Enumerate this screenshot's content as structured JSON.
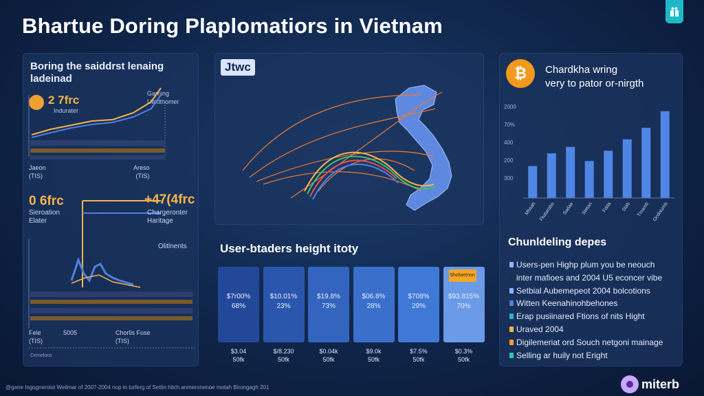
{
  "header": {
    "title": "Bhartue Doring Plaplomatiors in Vietnam"
  },
  "left_panel": {
    "heading": "Boring the saiddrst lenaing ladeinad",
    "stat_value": "2 7frc",
    "stat_sub": "Indurater",
    "legend_line1": "Garning",
    "legend_line2": "Uaidthomer",
    "foot_left_1": "Jaeon",
    "foot_left_2": "(TIS)",
    "foot_right_1": "Areso",
    "foot_right_2": "(TIS)",
    "big_left": "0 6frc",
    "big_right": "+47(4frc",
    "mid_left_1": "Sieroation",
    "mid_left_2": "Elater",
    "mid_right_1": "Chargeronter",
    "mid_right_2": "Haritage",
    "label_third": "Olitlnents",
    "bottom_left_1": "Fele",
    "bottom_left_2": "(TIS)",
    "bottom_mid": "5005",
    "bottom_right_1": "Chorlis Fuse",
    "bottom_right_2": "(TIS)",
    "bottom_foot": "Cemelons",
    "colors": {
      "accent": "#f6b54b",
      "line": "#4f7fe0"
    }
  },
  "map_panel": {
    "tag": "Jtwc",
    "colors": {
      "land": "#5f88e0",
      "arcs": "#f07a2e"
    }
  },
  "cards_section": {
    "title": "User-btaders height itoty",
    "flag_label": "Sholwetnon",
    "cards": [
      {
        "v1": "$7r00%",
        "v2": "68%",
        "foot1": "$3.04",
        "foot2": "50fk",
        "color": "#23489a"
      },
      {
        "v1": "$10.01%",
        "v2": "23%",
        "foot1": "$/8.230",
        "foot2": "50fk",
        "color": "#2b56ad"
      },
      {
        "v1": "$19.8%",
        "v2": "73%",
        "foot1": "$0.04k",
        "foot2": "50fk",
        "color": "#3365bf"
      },
      {
        "v1": "$06.8%",
        "v2": "28%",
        "foot1": "$9.0k",
        "foot2": "50fk",
        "color": "#3a70cc"
      },
      {
        "v1": "$708%",
        "v2": "29%",
        "foot1": "$7.5%",
        "foot2": "50fk",
        "color": "#3f78d6"
      },
      {
        "v1": "$93.815%",
        "v2": "70%",
        "foot1": "$0.3%",
        "foot2": "50fk",
        "color": "#6a9ae8"
      }
    ]
  },
  "right_panel": {
    "coin_symbol": "₿",
    "title_line1": "Chardkha wring",
    "title_line2": "very to pator or-nirgth",
    "list_title": "Chunldeling depes",
    "list": [
      {
        "text": "Users-pen Highp plum you be neouch",
        "color": "#8fb4f5"
      },
      {
        "text": "inter mafioes and 2004 U5 econcer vibe",
        "color": "#1b2d52"
      },
      {
        "text": "Setbial Aubemepeot 2004 bolcotions",
        "color": "#8fb4f5"
      },
      {
        "text": "Witten Keenahinohbehones",
        "color": "#4f7fe0"
      },
      {
        "text": "Erap pusiinared Ftions of nits Hight",
        "color": "#2fb3c8"
      },
      {
        "text": "Uraved 2004",
        "color": "#f6b54b"
      },
      {
        "text": "Digilemeriat ord Souch netgoni mainage",
        "color": "#f6a029"
      },
      {
        "text": "Selling ar huily not Eright",
        "color": "#2fc7b3"
      }
    ]
  },
  "chart_data": {
    "type": "bar",
    "categories": [
      "Mbsah",
      "Fkatarabo",
      "Sadae",
      "Stetan",
      "Fdda",
      "Stab",
      "Tmamb",
      "Ocdnlumb"
    ],
    "values": [
      25,
      35,
      40,
      29,
      37,
      46,
      55,
      68
    ],
    "ylim": [
      0,
      70
    ],
    "ytick_labels": [
      "2000",
      "70%",
      "400",
      "200",
      "300"
    ],
    "bar_color": "#4f86e6"
  },
  "brand": {
    "name": "miterb"
  },
  "footnote": "@gene Ingogneroist Weilmar of 2007-2004 nop in turferg of Settin hitch anmeronenoe motah Birongagh 201"
}
